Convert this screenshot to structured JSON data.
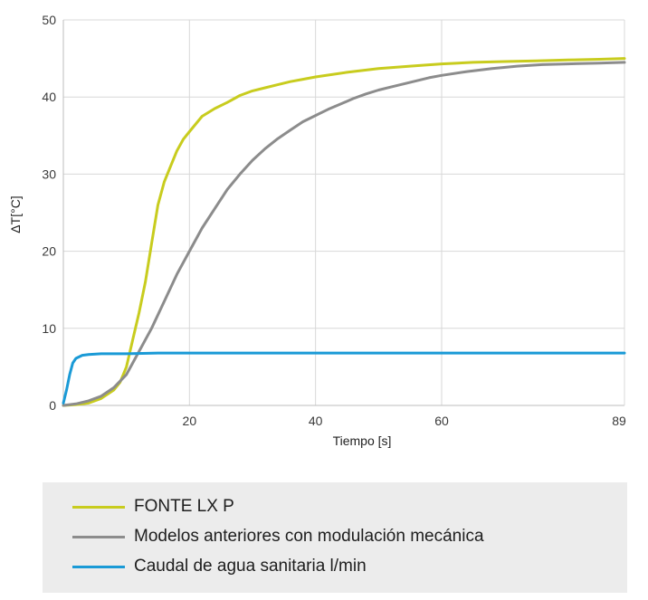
{
  "chart_data": {
    "type": "line",
    "xlabel": "Tiempo [s]",
    "ylabel": "ΔT[°C]",
    "xlim": [
      0,
      89
    ],
    "ylim": [
      0,
      50
    ],
    "x_ticks": [
      {
        "value": 20,
        "label": "20"
      },
      {
        "value": 40,
        "label": "40"
      },
      {
        "value": 60,
        "label": "60"
      },
      {
        "value": 89,
        "label": "89"
      }
    ],
    "y_ticks": [
      {
        "value": 0,
        "label": "0"
      },
      {
        "value": 10,
        "label": "10"
      },
      {
        "value": 20,
        "label": "20"
      },
      {
        "value": 30,
        "label": "30"
      },
      {
        "value": 40,
        "label": "40"
      },
      {
        "value": 50,
        "label": "50"
      }
    ],
    "grid": true,
    "legend_position": "bottom",
    "series": [
      {
        "name": "FONTE LX P",
        "color": "#c8cc1e",
        "points": [
          [
            0,
            0
          ],
          [
            2,
            0.1
          ],
          [
            4,
            0.3
          ],
          [
            6,
            0.9
          ],
          [
            8,
            2
          ],
          [
            9,
            3
          ],
          [
            10,
            5
          ],
          [
            11,
            8.5
          ],
          [
            12,
            12
          ],
          [
            13,
            16
          ],
          [
            14,
            21
          ],
          [
            15,
            26
          ],
          [
            16,
            29
          ],
          [
            17,
            31
          ],
          [
            18,
            33
          ],
          [
            19,
            34.5
          ],
          [
            20,
            35.5
          ],
          [
            22,
            37.5
          ],
          [
            24,
            38.5
          ],
          [
            26,
            39.3
          ],
          [
            28,
            40.2
          ],
          [
            30,
            40.8
          ],
          [
            32,
            41.2
          ],
          [
            34,
            41.6
          ],
          [
            36,
            42
          ],
          [
            38,
            42.3
          ],
          [
            40,
            42.6
          ],
          [
            45,
            43.2
          ],
          [
            50,
            43.7
          ],
          [
            55,
            44
          ],
          [
            60,
            44.3
          ],
          [
            65,
            44.5
          ],
          [
            70,
            44.6
          ],
          [
            75,
            44.7
          ],
          [
            80,
            44.8
          ],
          [
            85,
            44.9
          ],
          [
            89,
            45
          ]
        ]
      },
      {
        "name": "Modelos anteriores con modulación mecánica",
        "color": "#8c8c8c",
        "points": [
          [
            0,
            0
          ],
          [
            2,
            0.2
          ],
          [
            4,
            0.6
          ],
          [
            6,
            1.2
          ],
          [
            8,
            2.3
          ],
          [
            10,
            4
          ],
          [
            12,
            7
          ],
          [
            14,
            10
          ],
          [
            16,
            13.5
          ],
          [
            18,
            17
          ],
          [
            20,
            20
          ],
          [
            22,
            23
          ],
          [
            24,
            25.5
          ],
          [
            26,
            28
          ],
          [
            28,
            30
          ],
          [
            30,
            31.8
          ],
          [
            32,
            33.3
          ],
          [
            34,
            34.6
          ],
          [
            36,
            35.7
          ],
          [
            38,
            36.8
          ],
          [
            40,
            37.6
          ],
          [
            42,
            38.4
          ],
          [
            44,
            39.1
          ],
          [
            46,
            39.8
          ],
          [
            48,
            40.4
          ],
          [
            50,
            40.9
          ],
          [
            52,
            41.3
          ],
          [
            54,
            41.7
          ],
          [
            56,
            42.1
          ],
          [
            58,
            42.5
          ],
          [
            60,
            42.8
          ],
          [
            64,
            43.3
          ],
          [
            68,
            43.7
          ],
          [
            72,
            44
          ],
          [
            76,
            44.2
          ],
          [
            80,
            44.3
          ],
          [
            85,
            44.4
          ],
          [
            89,
            44.5
          ]
        ]
      },
      {
        "name": "Caudal de agua sanitaria l/min",
        "color": "#1a9ad6",
        "points": [
          [
            0,
            0.3
          ],
          [
            0.5,
            2
          ],
          [
            1,
            4
          ],
          [
            1.5,
            5.5
          ],
          [
            2,
            6.1
          ],
          [
            3,
            6.5
          ],
          [
            4,
            6.6
          ],
          [
            6,
            6.7
          ],
          [
            10,
            6.7
          ],
          [
            15,
            6.8
          ],
          [
            20,
            6.8
          ],
          [
            40,
            6.8
          ],
          [
            60,
            6.8
          ],
          [
            89,
            6.8
          ]
        ]
      }
    ]
  }
}
